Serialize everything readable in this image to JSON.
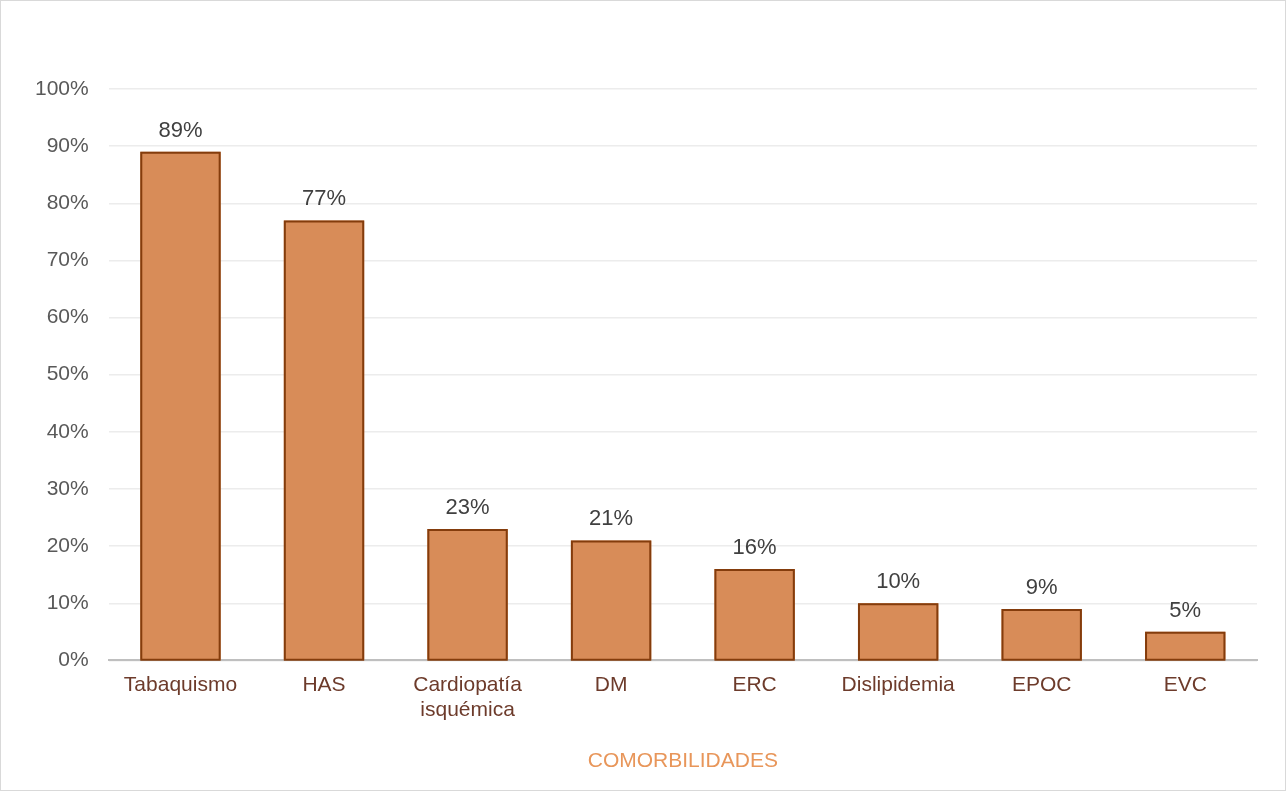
{
  "chart_data": {
    "type": "bar",
    "xlabel": "COMORBILIDADES",
    "categories": [
      "Tabaquismo",
      "HAS",
      "Cardiopatía isquémica",
      "DM",
      "ERC",
      "Dislipidemia",
      "EPOC",
      "EVC"
    ],
    "values": [
      89,
      77,
      23,
      21,
      16,
      10,
      9,
      5
    ],
    "value_labels": [
      "89%",
      "77%",
      "23%",
      "21%",
      "16%",
      "10%",
      "9%",
      "5%"
    ],
    "color": "#d88c58",
    "ylim": [
      0,
      100
    ],
    "yticks": [
      {
        "value": 0,
        "label": "0%"
      },
      {
        "value": 10,
        "label": "10%"
      },
      {
        "value": 20,
        "label": "20%"
      },
      {
        "value": 30,
        "label": "30%"
      },
      {
        "value": 40,
        "label": "40%"
      },
      {
        "value": 50,
        "label": "50%"
      },
      {
        "value": 60,
        "label": "60%"
      },
      {
        "value": 70,
        "label": "70%"
      },
      {
        "value": 80,
        "label": "80%"
      },
      {
        "value": 90,
        "label": "90%"
      },
      {
        "value": 100,
        "label": "100%"
      }
    ],
    "grid": "y"
  }
}
